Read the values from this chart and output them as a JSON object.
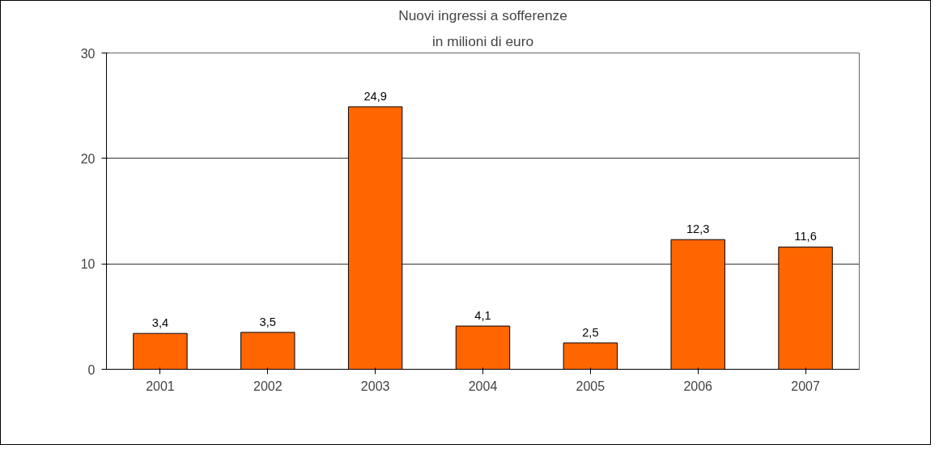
{
  "chart_data": {
    "type": "bar",
    "title": "Nuovi ingressi a sofferenze",
    "subtitle": "in milioni di euro",
    "categories": [
      "2001",
      "2002",
      "2003",
      "2004",
      "2005",
      "2006",
      "2007"
    ],
    "values": [
      3.4,
      3.5,
      24.9,
      4.1,
      2.5,
      12.3,
      11.6
    ],
    "value_labels": [
      "3,4",
      "3,5",
      "24,9",
      "4,1",
      "2,5",
      "12,3",
      "11,6"
    ],
    "color": "#ff6600",
    "ylim": [
      0,
      30
    ],
    "yticks": [
      0,
      10,
      20,
      30
    ],
    "grid": "y"
  }
}
